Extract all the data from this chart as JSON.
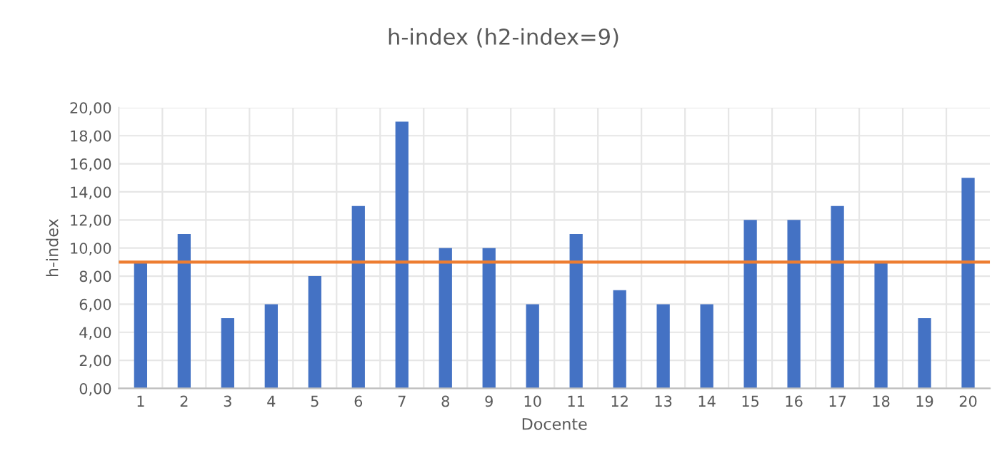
{
  "chart_data": {
    "type": "bar",
    "title": "h-index (h2-index=9)",
    "xlabel": "Docente",
    "ylabel": "h-index",
    "categories": [
      "1",
      "2",
      "3",
      "4",
      "5",
      "6",
      "7",
      "8",
      "9",
      "10",
      "11",
      "12",
      "13",
      "14",
      "15",
      "16",
      "17",
      "18",
      "19",
      "20"
    ],
    "values": [
      9,
      11,
      5,
      6,
      8,
      13,
      19,
      10,
      10,
      6,
      11,
      7,
      6,
      6,
      12,
      12,
      13,
      9,
      5,
      15
    ],
    "color": "#4472c4",
    "ylim": [
      0,
      20
    ],
    "yticks": [
      {
        "value": 0,
        "label": "0,00"
      },
      {
        "value": 2,
        "label": "2,00"
      },
      {
        "value": 4,
        "label": "4,00"
      },
      {
        "value": 6,
        "label": "6,00"
      },
      {
        "value": 8,
        "label": "8,00"
      },
      {
        "value": 10,
        "label": "10,00"
      },
      {
        "value": 12,
        "label": "12,00"
      },
      {
        "value": 14,
        "label": "14,00"
      },
      {
        "value": 16,
        "label": "16,00"
      },
      {
        "value": 18,
        "label": "18,00"
      },
      {
        "value": 20,
        "label": "20,00"
      }
    ],
    "ref_lines": [
      {
        "axis": "y",
        "value": 9,
        "color": "#ed7d31"
      }
    ],
    "grid": true
  }
}
